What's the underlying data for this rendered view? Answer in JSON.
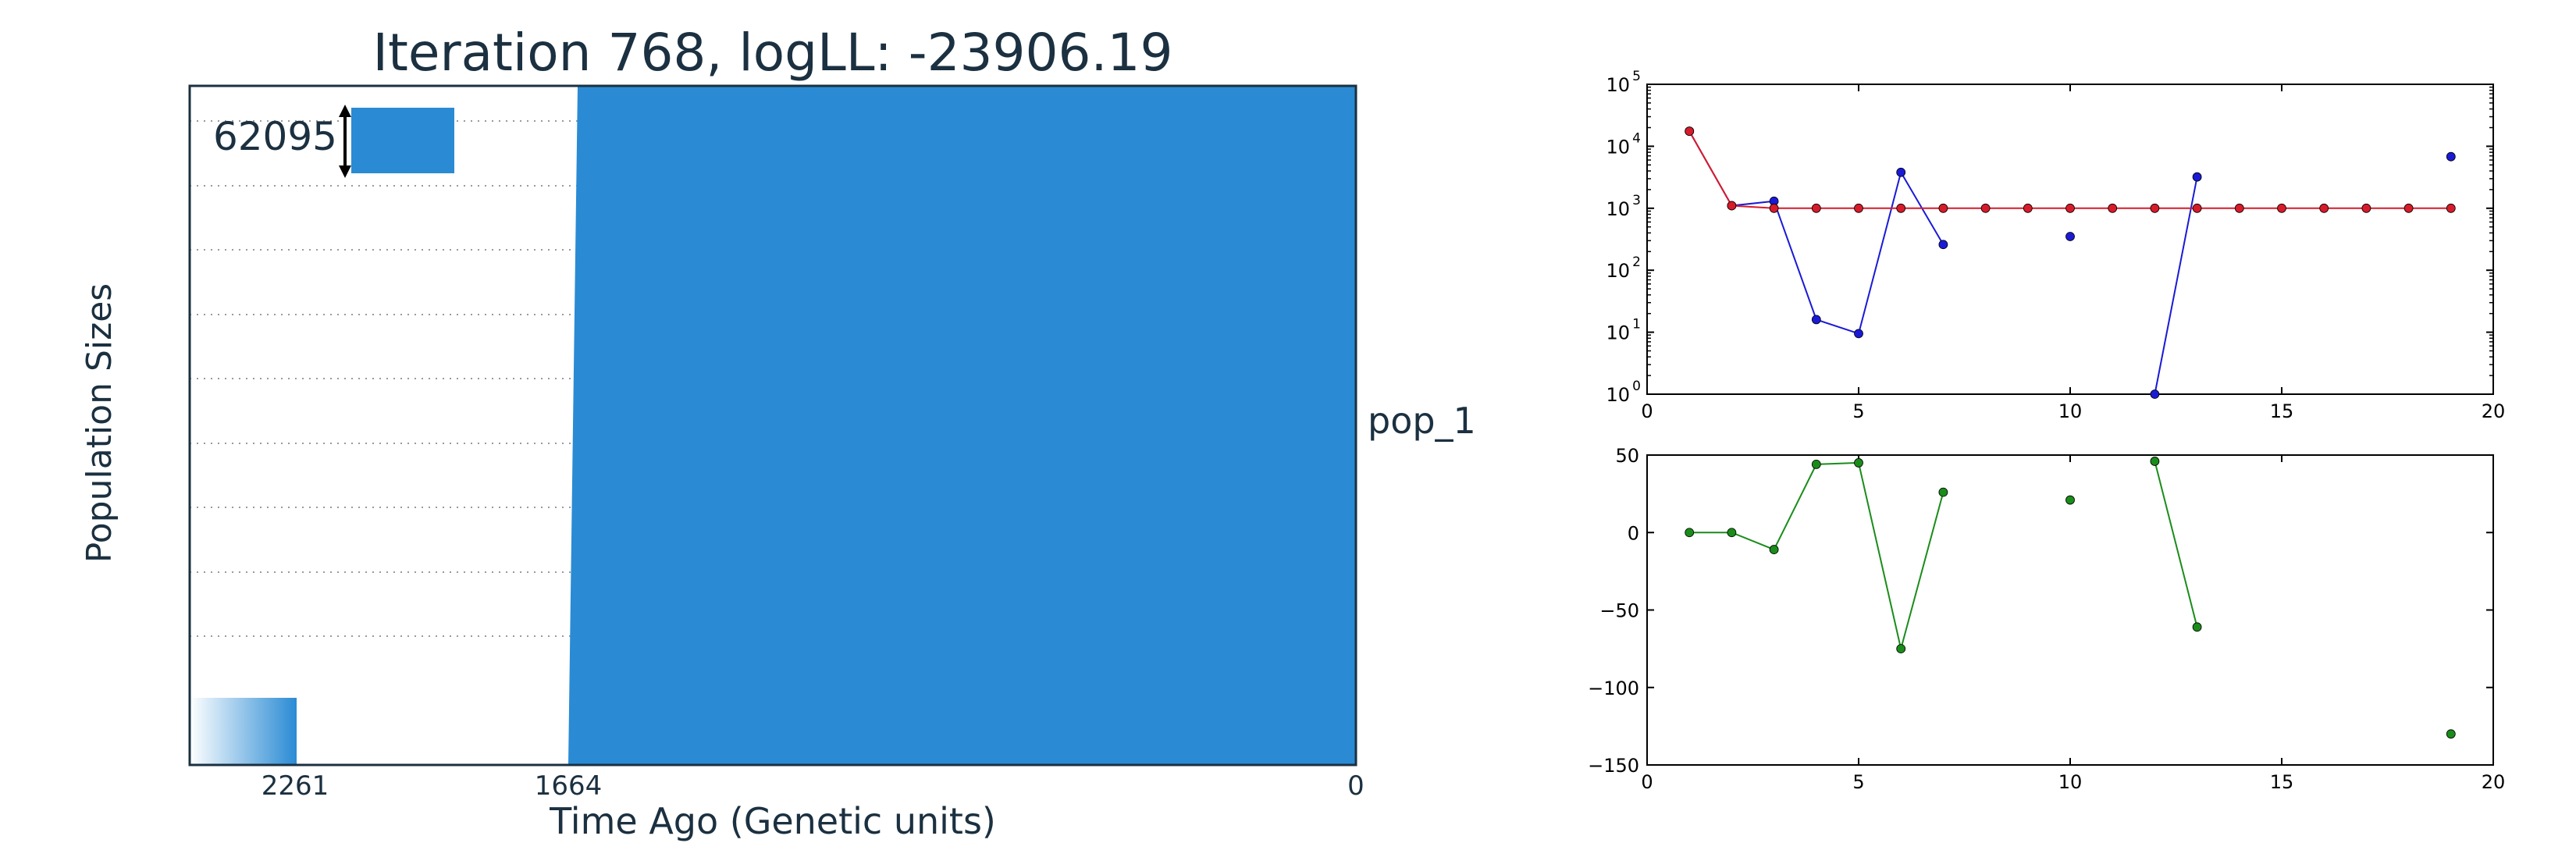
{
  "chart_data": [
    {
      "type": "area",
      "title": "Iteration 768, logLL:  -23906.19",
      "xlabel": "Time Ago (Genetic units)",
      "ylabel": "Population Sizes",
      "x_tick_labels": [
        "2261",
        "1664",
        "0"
      ],
      "population_label": "pop_1",
      "scale_bar_value": "62095",
      "grid": "horizontal dotted",
      "color": "#2a8bd4"
    },
    {
      "type": "line",
      "y_scale": "log",
      "xlim": [
        0,
        20
      ],
      "ylim": [
        1,
        100000
      ],
      "x_ticks": [
        "0",
        "5",
        "10",
        "15",
        "20"
      ],
      "y_ticks": [
        {
          "base": "10",
          "exp": "0"
        },
        {
          "base": "10",
          "exp": "1"
        },
        {
          "base": "10",
          "exp": "2"
        },
        {
          "base": "10",
          "exp": "3"
        },
        {
          "base": "10",
          "exp": "4"
        },
        {
          "base": "10",
          "exp": "5"
        }
      ],
      "series": [
        {
          "color": "#1a1ad6",
          "segments": [
            [
              [
                1,
                17500
              ],
              [
                2,
                1100
              ],
              [
                3,
                1300
              ],
              [
                4,
                16
              ],
              [
                5,
                9.5
              ],
              [
                6,
                3800
              ],
              [
                7,
                260
              ]
            ],
            [
              [
                10,
                350
              ]
            ],
            [
              [
                12,
                1
              ],
              [
                13,
                3200
              ]
            ],
            [
              [
                19,
                6800
              ]
            ]
          ]
        },
        {
          "color": "#d81b2a",
          "segments": [
            [
              [
                1,
                17500
              ],
              [
                2,
                1100
              ],
              [
                3,
                1000
              ],
              [
                4,
                1000
              ],
              [
                5,
                1000
              ],
              [
                6,
                1000
              ],
              [
                7,
                1000
              ],
              [
                8,
                1000
              ],
              [
                9,
                1000
              ],
              [
                10,
                1000
              ],
              [
                11,
                1000
              ],
              [
                12,
                1000
              ],
              [
                13,
                1000
              ],
              [
                14,
                1000
              ],
              [
                15,
                1000
              ],
              [
                16,
                1000
              ],
              [
                17,
                1000
              ],
              [
                18,
                1000
              ],
              [
                19,
                1000
              ]
            ]
          ]
        }
      ]
    },
    {
      "type": "line",
      "xlim": [
        0,
        20
      ],
      "ylim": [
        -150,
        50
      ],
      "x_ticks": [
        "0",
        "5",
        "10",
        "15",
        "20"
      ],
      "y_ticks": [
        "50",
        "0",
        "−50",
        "−100",
        "−150"
      ],
      "y_tick_values": [
        50,
        0,
        -50,
        -100,
        -150
      ],
      "series": [
        {
          "color": "#1a8c1a",
          "segments": [
            [
              [
                1,
                0
              ],
              [
                2,
                0
              ],
              [
                3,
                -11
              ],
              [
                4,
                44
              ],
              [
                5,
                45
              ],
              [
                6,
                -75
              ],
              [
                7,
                26
              ]
            ],
            [
              [
                10,
                21
              ]
            ],
            [
              [
                12,
                46
              ],
              [
                13,
                -61
              ]
            ],
            [
              [
                19,
                -130
              ]
            ]
          ]
        }
      ]
    }
  ]
}
